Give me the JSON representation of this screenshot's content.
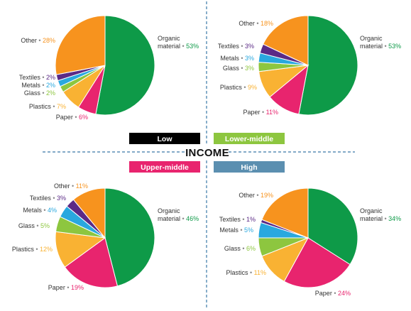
{
  "center": {
    "title": "INCOME"
  },
  "chart_data": [
    {
      "type": "pie",
      "title": "Low",
      "title_bg": "#000000",
      "title_fg": "#ffffff",
      "slices": [
        {
          "label": "Organic material",
          "value": 53,
          "color": "#0e9a48",
          "pct": "53%"
        },
        {
          "label": "Paper",
          "value": 6,
          "color": "#e8246e",
          "pct": "6%"
        },
        {
          "label": "Plastics",
          "value": 7,
          "color": "#f9b233",
          "pct": "7%"
        },
        {
          "label": "Glass",
          "value": 2,
          "color": "#8dc63f",
          "pct": "2%"
        },
        {
          "label": "Metals",
          "value": 2,
          "color": "#29a8df",
          "pct": "2%"
        },
        {
          "label": "Textiles",
          "value": 2,
          "color": "#5b2a86",
          "pct": "2%"
        },
        {
          "label": "Other",
          "value": 28,
          "color": "#f7931e",
          "pct": "28%"
        }
      ]
    },
    {
      "type": "pie",
      "title": "Lower-middle",
      "title_bg": "#8dc63f",
      "title_fg": "#ffffff",
      "slices": [
        {
          "label": "Organic material",
          "value": 53,
          "color": "#0e9a48",
          "pct": "53%"
        },
        {
          "label": "Paper",
          "value": 11,
          "color": "#e8246e",
          "pct": "11%"
        },
        {
          "label": "Plastics",
          "value": 9,
          "color": "#f9b233",
          "pct": "9%"
        },
        {
          "label": "Glass",
          "value": 3,
          "color": "#8dc63f",
          "pct": "3%"
        },
        {
          "label": "Metals",
          "value": 3,
          "color": "#29a8df",
          "pct": "3%"
        },
        {
          "label": "Textiles",
          "value": 3,
          "color": "#5b2a86",
          "pct": "3%"
        },
        {
          "label": "Other",
          "value": 18,
          "color": "#f7931e",
          "pct": "18%"
        }
      ]
    },
    {
      "type": "pie",
      "title": "Upper-middle",
      "title_bg": "#e8246e",
      "title_fg": "#ffffff",
      "slices": [
        {
          "label": "Organic material",
          "value": 46,
          "color": "#0e9a48",
          "pct": "46%"
        },
        {
          "label": "Paper",
          "value": 19,
          "color": "#e8246e",
          "pct": "19%"
        },
        {
          "label": "Plastics",
          "value": 12,
          "color": "#f9b233",
          "pct": "12%"
        },
        {
          "label": "Glass",
          "value": 5,
          "color": "#8dc63f",
          "pct": "5%"
        },
        {
          "label": "Metals",
          "value": 4,
          "color": "#29a8df",
          "pct": "4%"
        },
        {
          "label": "Textiles",
          "value": 3,
          "color": "#5b2a86",
          "pct": "3%"
        },
        {
          "label": "Other",
          "value": 11,
          "color": "#f7931e",
          "pct": "11%"
        }
      ]
    },
    {
      "type": "pie",
      "title": "High",
      "title_bg": "#5b8fb0",
      "title_fg": "#ffffff",
      "slices": [
        {
          "label": "Organic material",
          "value": 34,
          "color": "#0e9a48",
          "pct": "34%"
        },
        {
          "label": "Paper",
          "value": 24,
          "color": "#e8246e",
          "pct": "24%"
        },
        {
          "label": "Plastics",
          "value": 11,
          "color": "#f9b233",
          "pct": "11%"
        },
        {
          "label": "Glass",
          "value": 6,
          "color": "#8dc63f",
          "pct": "6%"
        },
        {
          "label": "Metals",
          "value": 5,
          "color": "#29a8df",
          "pct": "5%"
        },
        {
          "label": "Textiles",
          "value": 1,
          "color": "#5b2a86",
          "pct": "1%"
        },
        {
          "label": "Other",
          "value": 19,
          "color": "#f7931e",
          "pct": "19%"
        }
      ]
    }
  ]
}
